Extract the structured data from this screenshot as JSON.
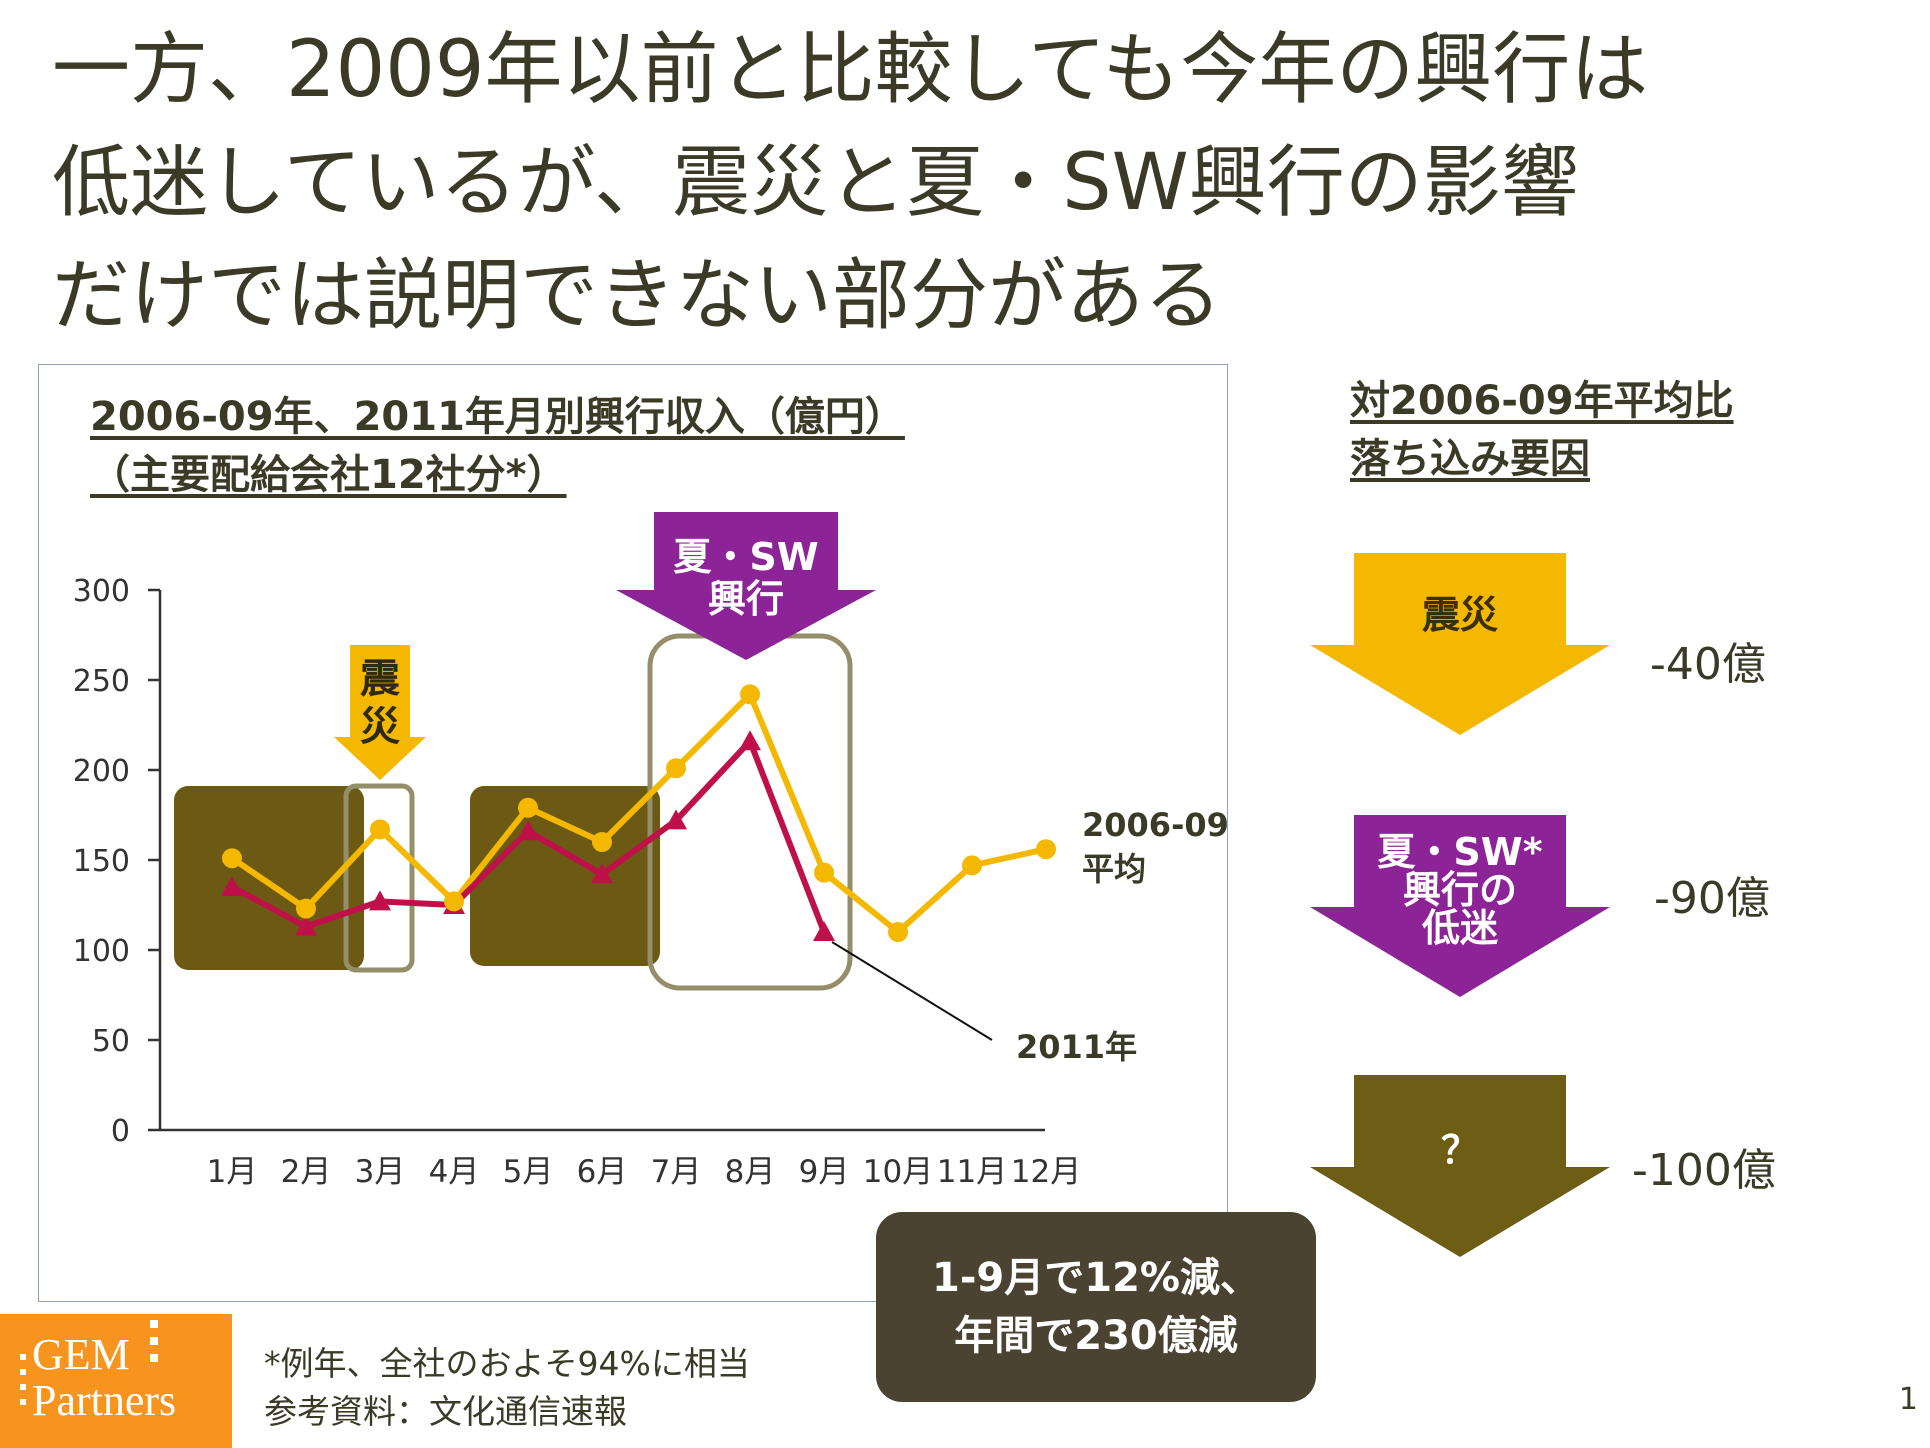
{
  "title": {
    "lines": [
      "一方、2009年以前と比較しても今年の興行は",
      "低迷しているが、震災と夏・SW興行の影響",
      "だけでは説明できない部分がある"
    ]
  },
  "chart_data": {
    "type": "line",
    "title": [
      "2006-09年、2011年月別興行収入（億円）",
      "（主要配給会社12社分*）"
    ],
    "categories": [
      "1月",
      "2月",
      "3月",
      "4月",
      "5月",
      "6月",
      "7月",
      "8月",
      "9月",
      "10月",
      "11月",
      "12月"
    ],
    "ylim": [
      0,
      300
    ],
    "yticks": [
      0,
      50,
      100,
      150,
      200,
      250,
      300
    ],
    "grid": false,
    "legend": "direct-labels",
    "series": [
      {
        "name": "2006-09 平均",
        "label_lines": [
          "2006-09",
          "平均"
        ],
        "color": "#f5b800",
        "marker": "circle",
        "values": [
          151,
          123,
          167,
          127,
          179,
          160,
          201,
          242,
          143,
          110,
          147,
          156
        ]
      },
      {
        "name": "2011年",
        "color": "#c0104a",
        "marker": "triangle",
        "values": [
          135,
          113,
          127,
          125,
          166,
          142,
          172,
          216,
          110,
          null,
          null,
          null
        ]
      }
    ],
    "annotations": [
      {
        "label": "震災",
        "color": "#f5b800",
        "category_range": [
          "3月",
          "3月"
        ]
      },
      {
        "label": "夏・SW興行",
        "label_lines": [
          "夏・SW",
          "興行"
        ],
        "color": "#8c2396",
        "category_range": [
          "7月",
          "9月"
        ]
      }
    ],
    "highlight_ranges": [
      [
        "1月",
        "2月"
      ],
      [
        "5月",
        "6月"
      ]
    ]
  },
  "right_panel": {
    "title_lines": [
      "対2006-09年平均比",
      "落ち込み要因"
    ],
    "factors": [
      {
        "label_lines": [
          "震災"
        ],
        "amount": "-40億",
        "color": "#f5b800",
        "text_color": "#3b2f00"
      },
      {
        "label_lines": [
          "夏・SW*",
          "興行の",
          "低迷"
        ],
        "amount": "-90億",
        "color": "#8c2396",
        "text_color": "#ffffff"
      },
      {
        "label_lines": [
          "？"
        ],
        "amount": "-100億",
        "color": "#6e5d14",
        "text_color": "#ffffff"
      }
    ]
  },
  "summary": {
    "lines": [
      "1-9月で12%減、",
      "年間で230億減"
    ],
    "bg": "#4b4331"
  },
  "logo": {
    "lines": [
      "GEM",
      "Partners"
    ],
    "bg": "#f7941d"
  },
  "footnote": {
    "lines": [
      "*例年、全社のおよそ94%に相当",
      "参考資料：文化通信速報"
    ]
  },
  "page_number": "1"
}
